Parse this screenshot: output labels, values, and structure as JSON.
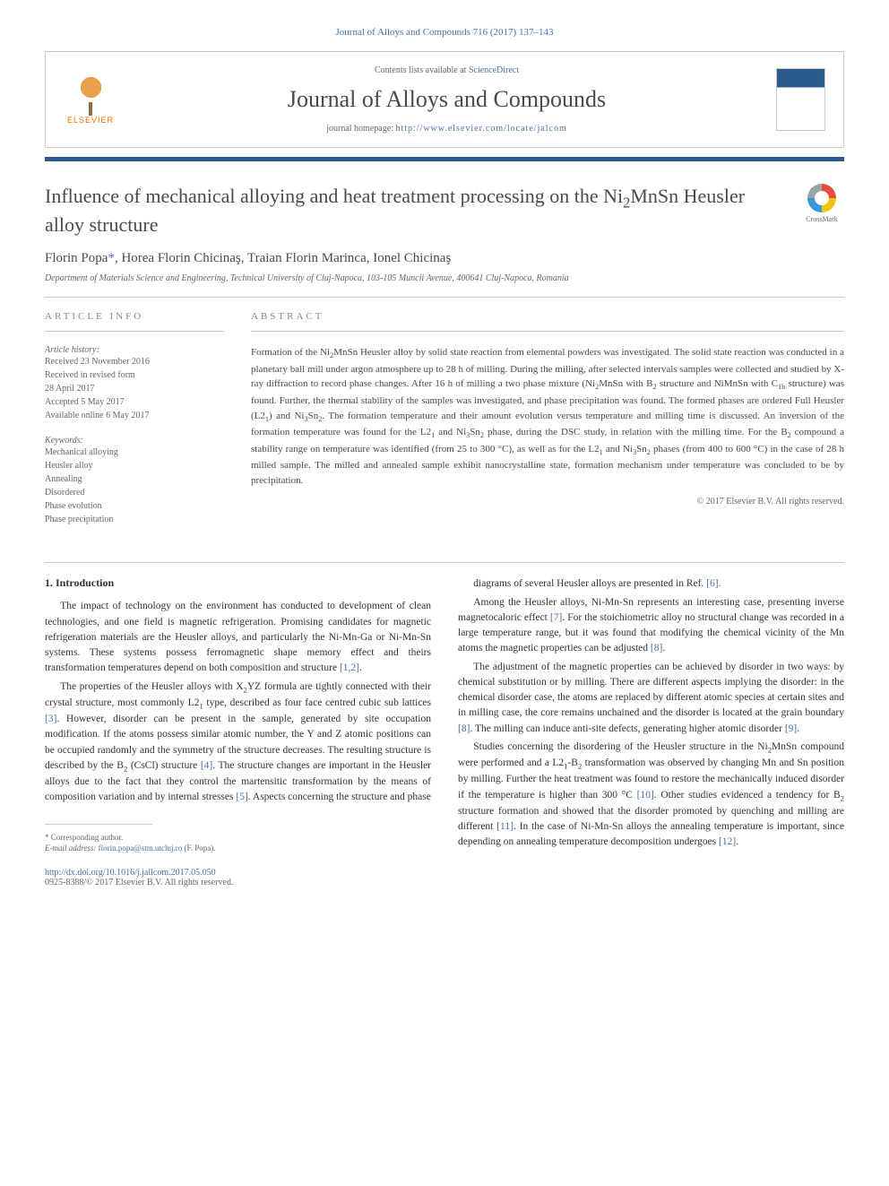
{
  "colors": {
    "link": "#4a6fa5",
    "blue_bar": "#2b5a8f",
    "text_dark": "#4a4a4a",
    "text_body": "#333333",
    "text_muted": "#666666",
    "border": "#cccccc",
    "elsevier_orange": "#ff6b00"
  },
  "header": {
    "citation": "Journal of Alloys and Compounds 716 (2017) 137–143",
    "contents_label": "Contents lists available at",
    "contents_link": "ScienceDirect",
    "journal_name": "Journal of Alloys and Compounds",
    "homepage_label": "journal homepage:",
    "homepage_url": "http://www.elsevier.com/locate/jalcom",
    "publisher": "ELSEVIER",
    "cover_text": "JOURNAL OF ALLOYS AND COMPOUNDS"
  },
  "article": {
    "title_html": "Influence of mechanical alloying and heat treatment processing on the Ni<sub>2</sub>MnSn Heusler alloy structure",
    "crossmark": "CrossMark",
    "authors_html": "Florin Popa<span class=\"corr\">*</span>, Horea Florin Chicinaş, Traian Florin Marinca, Ionel Chicinaş",
    "affiliation": "Department of Materials Science and Engineering, Technical University of Cluj-Napoca, 103-105 Muncii Avenue, 400641 Cluj-Napoca, Romania"
  },
  "info": {
    "heading": "ARTICLE INFO",
    "history_label": "Article history:",
    "history": [
      "Received 23 November 2016",
      "Received in revised form",
      "28 April 2017",
      "Accepted 5 May 2017",
      "Available online 6 May 2017"
    ],
    "keywords_label": "Keywords:",
    "keywords": [
      "Mechanical alloying",
      "Heusler alloy",
      "Annealing",
      "Disordered",
      "Phase evolution",
      "Phase precipitation"
    ]
  },
  "abstract": {
    "heading": "ABSTRACT",
    "text_html": "Formation of the Ni<sub>2</sub>MnSn Heusler alloy by solid state reaction from elemental powders was investigated. The solid state reaction was conducted in a planetary ball mill under argon atmosphere up to 28 h of milling. During the milling, after selected intervals samples were collected and studied by X-ray diffraction to record phase changes. After 16 h of milling a two phase mixture (Ni<sub>2</sub>MnSn with B<sub>2</sub> structure and NiMnSn with C<sub>1b</sub> structure) was found. Further, the thermal stability of the samples was investigated, and phase precipitation was found. The formed phases are ordered Full Heusler (L2<sub>1</sub>) and Ni<sub>3</sub>Sn<sub>2</sub>. The formation temperature and their amount evolution versus temperature and milling time is discussed. An inversion of the formation temperature was found for the L2<sub>1</sub> and Ni<sub>3</sub>Sn<sub>2</sub> phase, during the DSC study, in relation with the milling time. For the B<sub>2</sub> compound a stability range on temperature was identified (from 25 to 300 °C), as well as for the L2<sub>1</sub> and Ni<sub>3</sub>Sn<sub>2</sub> phases (from 400 to 600 °C) in the case of 28 h milled sample. The milled and annealed sample exhibit nanocrystalline state, formation mechanism under temperature was concluded to be by precipitation.",
    "copyright": "© 2017 Elsevier B.V. All rights reserved."
  },
  "body": {
    "section1_heading": "1. Introduction",
    "col1": [
      "The impact of technology on the environment has conducted to development of clean technologies, and one field is magnetic refrigeration. Promising candidates for magnetic refrigeration materials are the Heusler alloys, and particularly the Ni-Mn-Ga or Ni-Mn-Sn systems. These systems possess ferromagnetic shape memory effect and theirs transformation temperatures depend on both composition and structure <span class=\"ref\">[1,2]</span>.",
      "The properties of the Heusler alloys with X<sub>2</sub>YZ formula are tightly connected with their crystal structure, most commonly L2<sub>1</sub> type, described as four face centred cubic sub lattices <span class=\"ref\">[3]</span>. However, disorder can be present in the sample, generated by site occupation modification. If the atoms possess similar atomic number, the Y and Z atomic positions can be occupied randomly and the symmetry of the structure decreases. The resulting structure is described by the B<sub>2</sub> (CsCl) structure <span class=\"ref\">[4]</span>. The structure changes are important in the Heusler alloys due to the fact that they control the martensitic transformation by the means of composition variation and by internal stresses <span class=\"ref\">[5]</span>. Aspects concerning the structure and phase"
    ],
    "col2": [
      "diagrams of several Heusler alloys are presented in Ref. <span class=\"ref\">[6]</span>.",
      "Among the Heusler alloys, Ni-Mn-Sn represents an interesting case, presenting inverse magnetocaloric effect <span class=\"ref\">[7]</span>. For the stoichiometric alloy no structural change was recorded in a large temperature range, but it was found that modifying the chemical vicinity of the Mn atoms the magnetic properties can be adjusted <span class=\"ref\">[8]</span>.",
      "The adjustment of the magnetic properties can be achieved by disorder in two ways: by chemical substitution or by milling. There are different aspects implying the disorder: in the chemical disorder case, the atoms are replaced by different atomic species at certain sites and in milling case, the core remains unchained and the disorder is located at the grain boundary <span class=\"ref\">[8]</span>. The milling can induce anti-site defects, generating higher atomic disorder <span class=\"ref\">[9]</span>.",
      "Studies concerning the disordering of the Heusler structure in the Ni<sub>2</sub>MnSn compound were performed and a L2<sub>1</sub>-B<sub>2</sub> transformation was observed by changing Mn and Sn position by milling. Further the heat treatment was found to restore the mechanically induced disorder if the temperature is higher than 300 °C <span class=\"ref\">[10]</span>. Other studies evidenced a tendency for B<sub>2</sub> structure formation and showed that the disorder promoted by quenching and milling are different <span class=\"ref\">[11]</span>. In the case of Ni-Mn-Sn alloys the annealing temperature is important, since depending on annealing temperature decomposition undergoes <span class=\"ref\">[12]</span>."
    ]
  },
  "footer": {
    "corr_label": "* Corresponding author.",
    "email_label": "E-mail address:",
    "email": "florin.popa@stm.utcluj.ro",
    "email_name": "(F. Popa).",
    "doi": "http://dx.doi.org/10.1016/j.jallcom.2017.05.050",
    "issn": "0925-8388/© 2017 Elsevier B.V. All rights reserved."
  }
}
